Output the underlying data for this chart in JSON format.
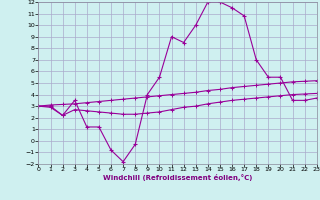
{
  "x": [
    0,
    1,
    2,
    3,
    4,
    5,
    6,
    7,
    8,
    9,
    10,
    11,
    12,
    13,
    14,
    15,
    16,
    17,
    18,
    19,
    20,
    21,
    22,
    23
  ],
  "line1_y": [
    3.0,
    3.0,
    2.2,
    3.5,
    1.2,
    1.2,
    -0.8,
    -1.8,
    -0.3,
    4.0,
    5.5,
    9.0,
    8.5,
    10.0,
    12.0,
    12.0,
    11.5,
    10.8,
    7.0,
    5.5,
    5.5,
    3.5,
    3.5,
    3.7
  ],
  "line2_y": [
    3.0,
    3.1,
    3.15,
    3.2,
    3.3,
    3.4,
    3.5,
    3.6,
    3.7,
    3.8,
    3.9,
    4.0,
    4.1,
    4.2,
    4.35,
    4.45,
    4.6,
    4.7,
    4.8,
    4.9,
    5.0,
    5.1,
    5.15,
    5.2
  ],
  "line3_y": [
    3.0,
    2.9,
    2.2,
    2.7,
    2.6,
    2.5,
    2.4,
    2.3,
    2.3,
    2.4,
    2.5,
    2.7,
    2.9,
    3.0,
    3.2,
    3.35,
    3.5,
    3.6,
    3.7,
    3.8,
    3.9,
    4.0,
    4.05,
    4.1
  ],
  "color": "#990099",
  "bg_color": "#cff0f0",
  "grid_color": "#aaaacc",
  "xlabel": "Windchill (Refroidissement éolien,°C)",
  "ylim": [
    -2,
    12
  ],
  "xlim": [
    0,
    23
  ],
  "yticks": [
    -2,
    -1,
    0,
    1,
    2,
    3,
    4,
    5,
    6,
    7,
    8,
    9,
    10,
    11,
    12
  ],
  "xticks": [
    0,
    1,
    2,
    3,
    4,
    5,
    6,
    7,
    8,
    9,
    10,
    11,
    12,
    13,
    14,
    15,
    16,
    17,
    18,
    19,
    20,
    21,
    22,
    23
  ]
}
